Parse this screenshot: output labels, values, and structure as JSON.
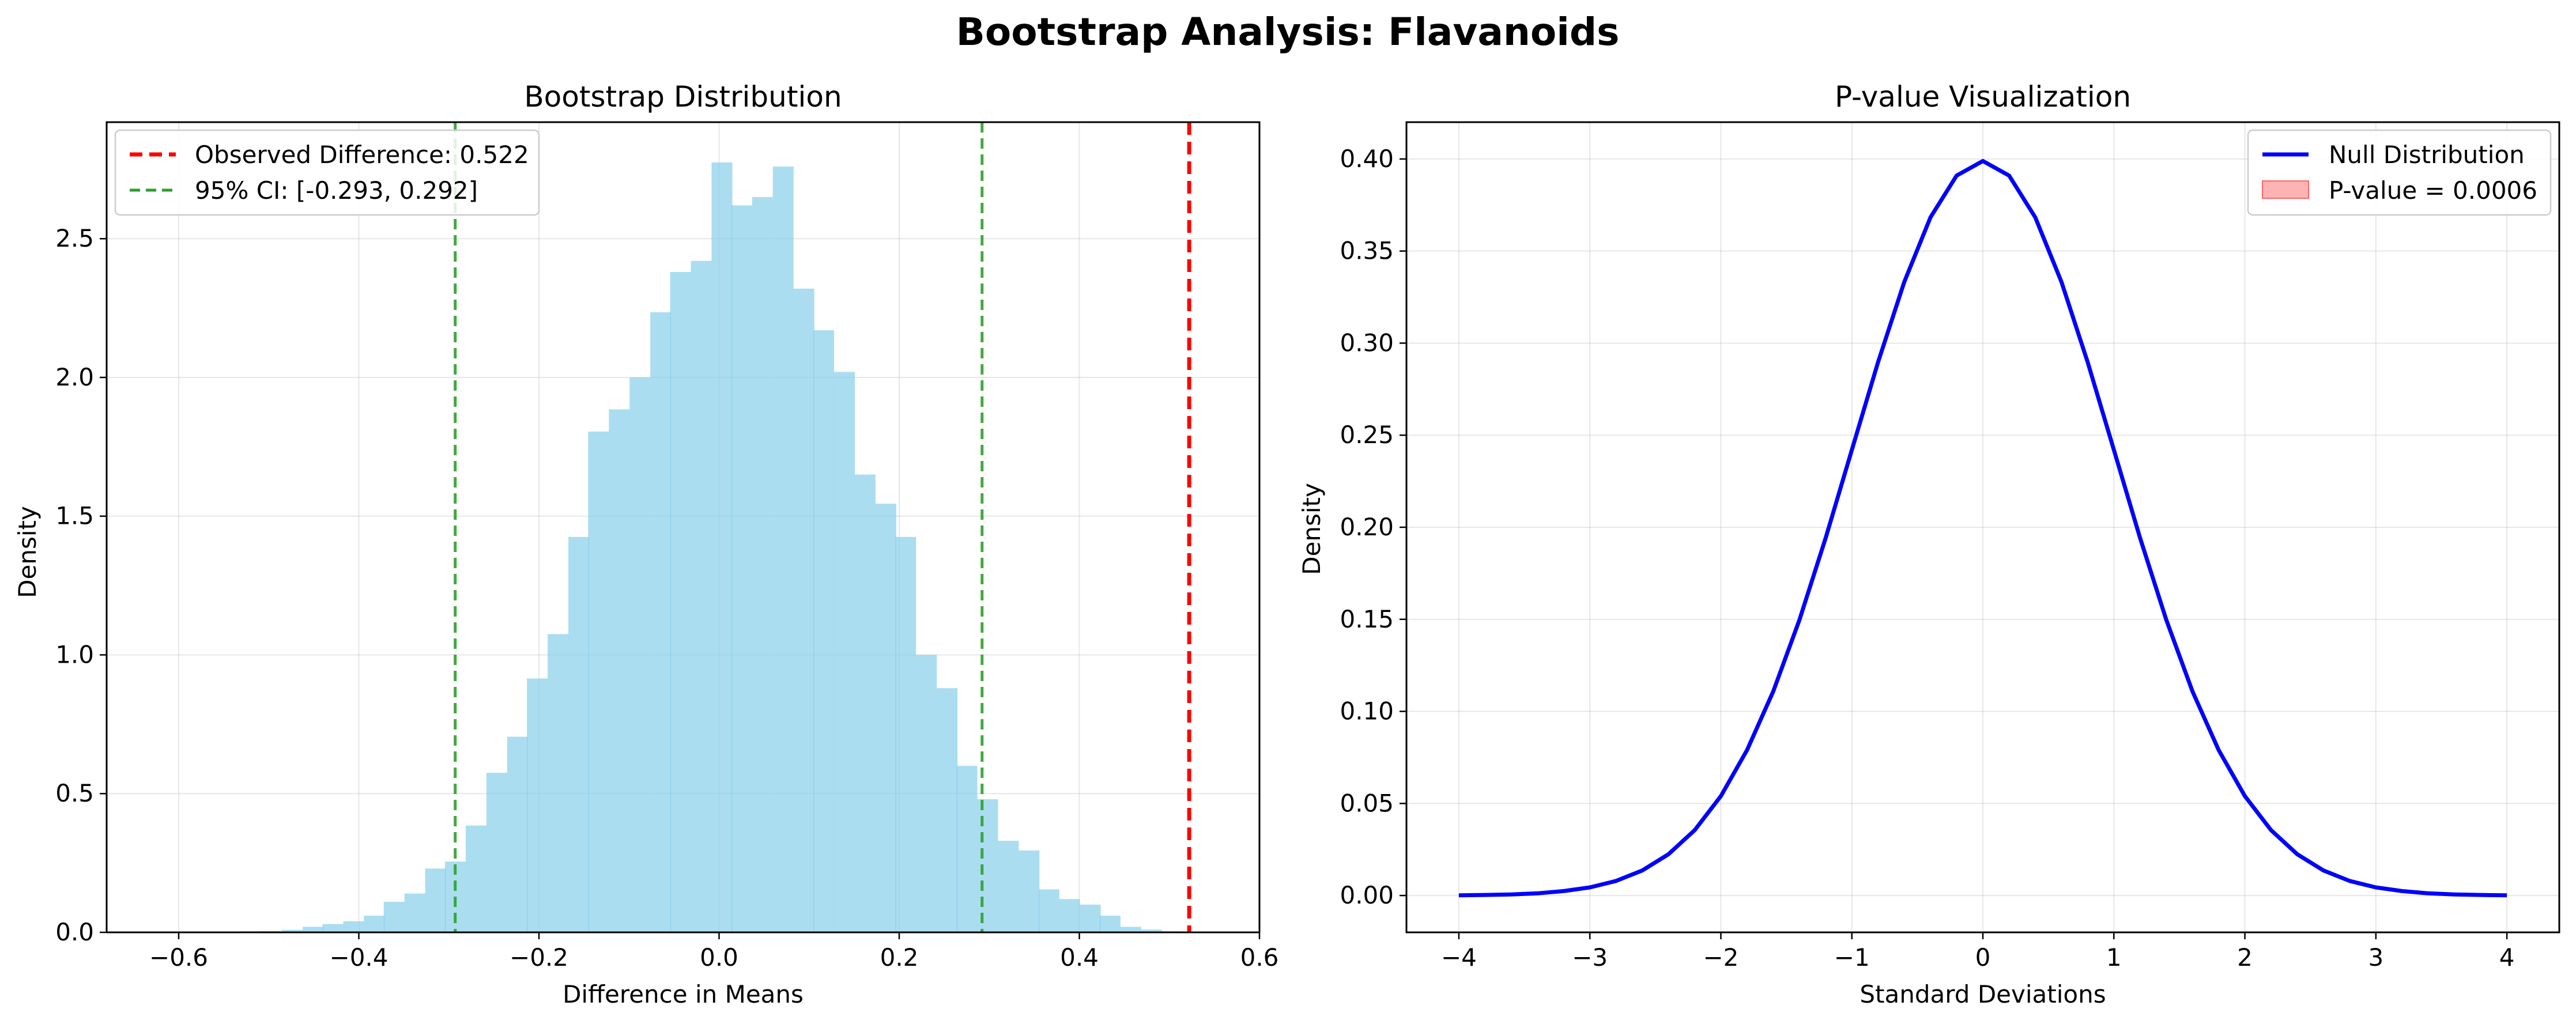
{
  "figure": {
    "suptitle": "Bootstrap Analysis: Flavanoids"
  },
  "chart_data": [
    {
      "type": "bar",
      "subtype": "histogram",
      "title": "Bootstrap Distribution",
      "xlabel": "Difference in Means",
      "ylabel": "Density",
      "xlim": [
        -0.68,
        0.6
      ],
      "ylim": [
        0,
        2.92
      ],
      "grid": true,
      "bar_color": "#87ceeb",
      "bin_width": 0.0227,
      "bins": [
        {
          "x": -0.52,
          "y": 0.004
        },
        {
          "x": -0.497,
          "y": 0.005
        },
        {
          "x": -0.474,
          "y": 0.009
        },
        {
          "x": -0.451,
          "y": 0.02
        },
        {
          "x": -0.429,
          "y": 0.03
        },
        {
          "x": -0.406,
          "y": 0.04
        },
        {
          "x": -0.383,
          "y": 0.06
        },
        {
          "x": -0.361,
          "y": 0.11
        },
        {
          "x": -0.338,
          "y": 0.14
        },
        {
          "x": -0.315,
          "y": 0.23
        },
        {
          "x": -0.293,
          "y": 0.255
        },
        {
          "x": -0.27,
          "y": 0.385
        },
        {
          "x": -0.247,
          "y": 0.575
        },
        {
          "x": -0.224,
          "y": 0.705
        },
        {
          "x": -0.202,
          "y": 0.915
        },
        {
          "x": -0.179,
          "y": 1.075
        },
        {
          "x": -0.156,
          "y": 1.425
        },
        {
          "x": -0.134,
          "y": 1.805
        },
        {
          "x": -0.111,
          "y": 1.885
        },
        {
          "x": -0.088,
          "y": 2.0
        },
        {
          "x": -0.065,
          "y": 2.235
        },
        {
          "x": -0.043,
          "y": 2.38
        },
        {
          "x": -0.02,
          "y": 2.42
        },
        {
          "x": 0.003,
          "y": 2.775
        },
        {
          "x": 0.025,
          "y": 2.62
        },
        {
          "x": 0.048,
          "y": 2.65
        },
        {
          "x": 0.071,
          "y": 2.76
        },
        {
          "x": 0.094,
          "y": 2.32
        },
        {
          "x": 0.116,
          "y": 2.17
        },
        {
          "x": 0.139,
          "y": 2.02
        },
        {
          "x": 0.162,
          "y": 1.65
        },
        {
          "x": 0.185,
          "y": 1.545
        },
        {
          "x": 0.207,
          "y": 1.425
        },
        {
          "x": 0.23,
          "y": 1.0
        },
        {
          "x": 0.253,
          "y": 0.88
        },
        {
          "x": 0.275,
          "y": 0.6
        },
        {
          "x": 0.298,
          "y": 0.48
        },
        {
          "x": 0.321,
          "y": 0.33
        },
        {
          "x": 0.344,
          "y": 0.295
        },
        {
          "x": 0.366,
          "y": 0.155
        },
        {
          "x": 0.389,
          "y": 0.12
        },
        {
          "x": 0.412,
          "y": 0.1
        },
        {
          "x": 0.434,
          "y": 0.06
        },
        {
          "x": 0.457,
          "y": 0.02
        },
        {
          "x": 0.48,
          "y": 0.01
        },
        {
          "x": 0.503,
          "y": 0.004
        }
      ],
      "ref_lines": [
        {
          "x": 0.522,
          "color": "#ff0000",
          "style": "dashed",
          "legend": "Observed Difference: 0.522"
        },
        {
          "x": -0.293,
          "color": "#2ca02c",
          "style": "dashed",
          "legend": "95% CI: [-0.293, 0.292]"
        },
        {
          "x": 0.292,
          "color": "#2ca02c",
          "style": "dashed"
        }
      ],
      "xticks": [
        -0.6,
        -0.4,
        -0.2,
        0.0,
        0.2,
        0.4,
        0.6
      ],
      "xtick_labels": [
        "−0.6",
        "−0.4",
        "−0.2",
        "0.0",
        "0.2",
        "0.4",
        "0.6"
      ],
      "yticks": [
        0.0,
        0.5,
        1.0,
        1.5,
        2.0,
        2.5
      ],
      "ytick_labels": [
        "0.0",
        "0.5",
        "1.0",
        "1.5",
        "2.0",
        "2.5"
      ],
      "legend_position": "top-left"
    },
    {
      "type": "line",
      "title": "P-value Visualization",
      "xlabel": "Standard Deviations",
      "ylabel": "Density",
      "xlim": [
        -4.4,
        4.4
      ],
      "ylim": [
        -0.02,
        0.42
      ],
      "grid": true,
      "series": [
        {
          "name": "Null Distribution",
          "color": "#0000ff",
          "kind": "line",
          "x": [
            -4.0,
            -3.8,
            -3.6,
            -3.4,
            -3.2,
            -3.0,
            -2.8,
            -2.6,
            -2.4,
            -2.2,
            -2.0,
            -1.8,
            -1.6,
            -1.4,
            -1.2,
            -1.0,
            -0.8,
            -0.6,
            -0.4,
            -0.2,
            0.0,
            0.2,
            0.4,
            0.6,
            0.8,
            1.0,
            1.2,
            1.4,
            1.6,
            1.8,
            2.0,
            2.2,
            2.4,
            2.6,
            2.8,
            3.0,
            3.2,
            3.4,
            3.6,
            3.8,
            4.0
          ],
          "y": [
            0.0001,
            0.0003,
            0.0006,
            0.0012,
            0.0024,
            0.0044,
            0.0079,
            0.0136,
            0.0224,
            0.0355,
            0.054,
            0.079,
            0.1109,
            0.1497,
            0.1942,
            0.242,
            0.2897,
            0.3332,
            0.3683,
            0.391,
            0.3989,
            0.391,
            0.3683,
            0.3332,
            0.2897,
            0.242,
            0.1942,
            0.1497,
            0.1109,
            0.079,
            0.054,
            0.0355,
            0.0224,
            0.0136,
            0.0079,
            0.0044,
            0.0024,
            0.0012,
            0.0006,
            0.0003,
            0.0001
          ]
        },
        {
          "name": "P-value = 0.0006",
          "color": "#ff9999",
          "kind": "fill"
        }
      ],
      "xticks": [
        -4,
        -3,
        -2,
        -1,
        0,
        1,
        2,
        3,
        4
      ],
      "xtick_labels": [
        "−4",
        "−3",
        "−2",
        "−1",
        "0",
        "1",
        "2",
        "3",
        "4"
      ],
      "yticks": [
        0.0,
        0.05,
        0.1,
        0.15,
        0.2,
        0.25,
        0.3,
        0.35,
        0.4
      ],
      "ytick_labels": [
        "0.00",
        "0.05",
        "0.10",
        "0.15",
        "0.20",
        "0.25",
        "0.30",
        "0.35",
        "0.40"
      ],
      "legend_position": "top-right"
    }
  ]
}
